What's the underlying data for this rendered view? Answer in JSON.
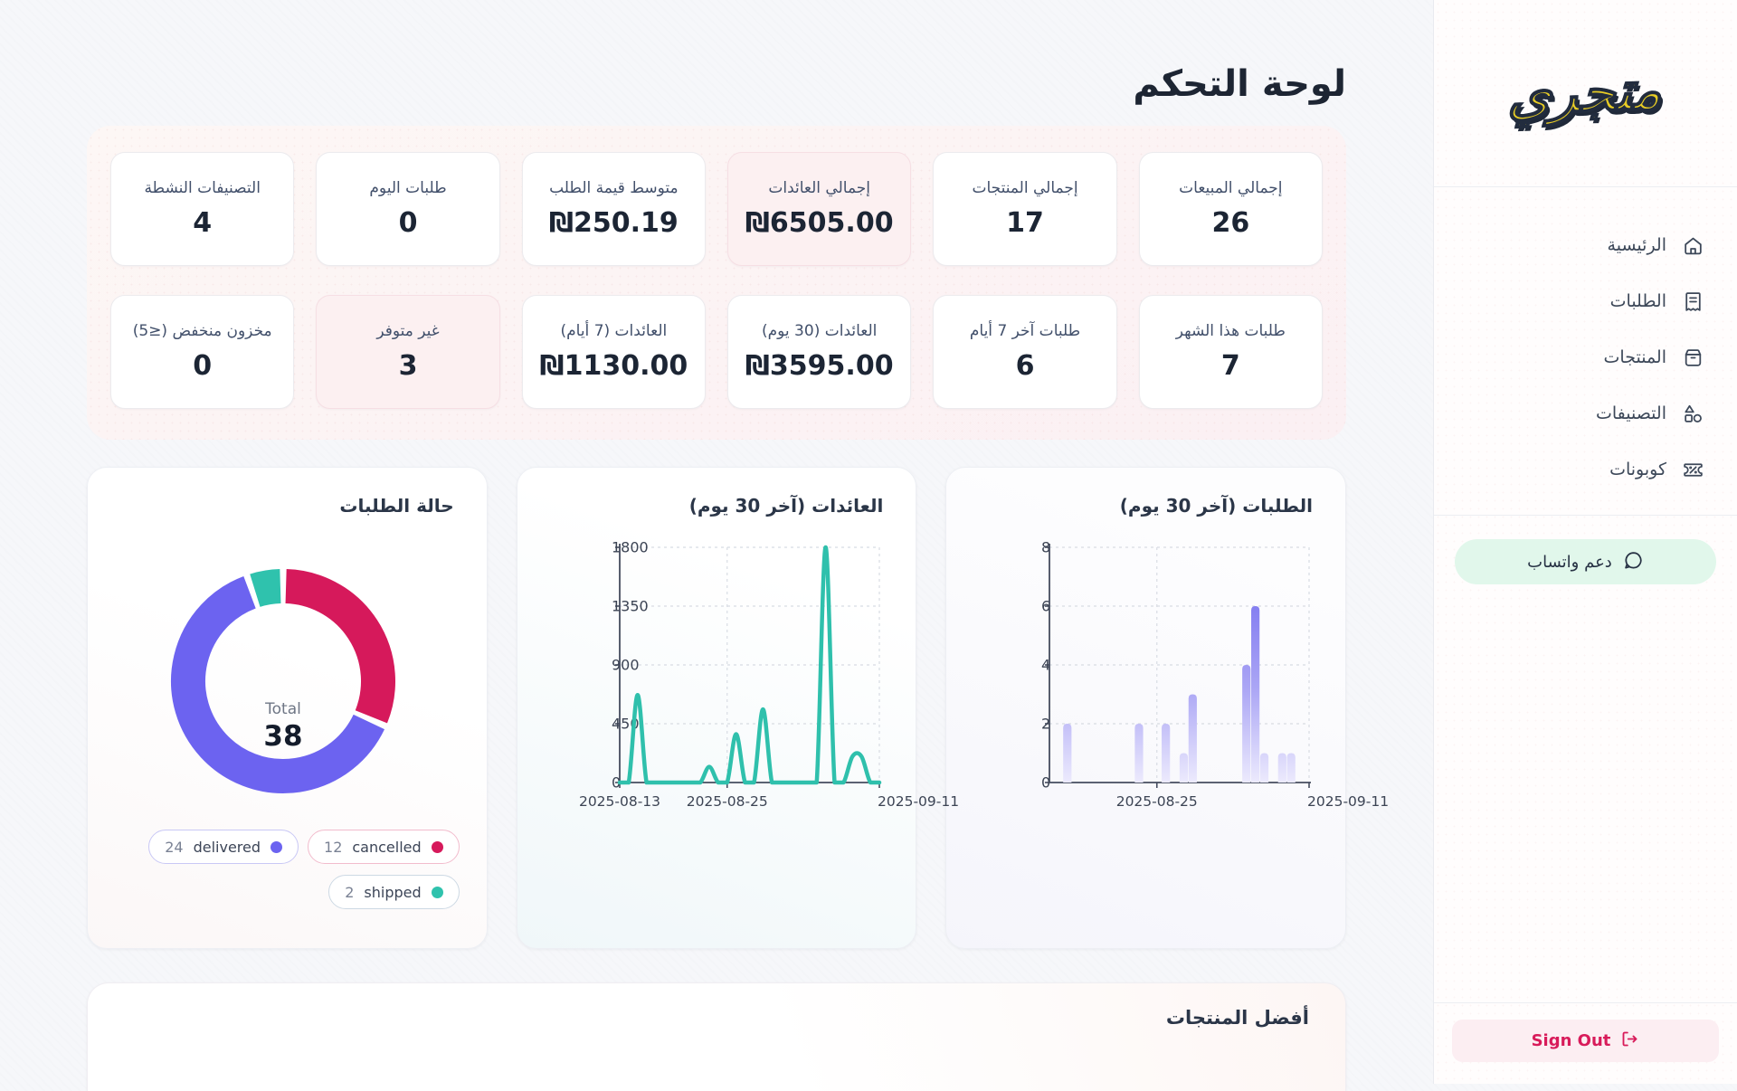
{
  "page": {
    "title": "لوحة التحكم"
  },
  "sidebar": {
    "logo": "متجري",
    "nav": [
      {
        "label": "الرئيسية",
        "icon": "home"
      },
      {
        "label": "الطلبات",
        "icon": "receipt"
      },
      {
        "label": "المنتجات",
        "icon": "box"
      },
      {
        "label": "التصنيفات",
        "icon": "shapes"
      },
      {
        "label": "كوبونات",
        "icon": "ticket"
      }
    ],
    "whatsapp_label": "دعم واتساب",
    "signout_label": "Sign Out"
  },
  "stats": {
    "cards": [
      {
        "label": "إجمالي المبيعات",
        "value": "26",
        "highlight": false
      },
      {
        "label": "إجمالي المنتجات",
        "value": "17",
        "highlight": false
      },
      {
        "label": "إجمالي العائدات",
        "value": "₪6505.00",
        "highlight": true
      },
      {
        "label": "متوسط قيمة الطلب",
        "value": "₪250.19",
        "highlight": false
      },
      {
        "label": "طلبات اليوم",
        "value": "0",
        "highlight": false
      },
      {
        "label": "التصنيفات النشطة",
        "value": "4",
        "highlight": false
      },
      {
        "label": "طلبات هذا الشهر",
        "value": "7",
        "highlight": false
      },
      {
        "label": "طلبات آخر 7 أيام",
        "value": "6",
        "highlight": false
      },
      {
        "label": "العائدات (30 يوم)",
        "value": "₪3595.00",
        "highlight": false
      },
      {
        "label": "العائدات (7 أيام)",
        "value": "₪1130.00",
        "highlight": false
      },
      {
        "label": "غير متوفر",
        "value": "3",
        "highlight": true
      },
      {
        "label": "مخزون منخفض (≤5)",
        "value": "0",
        "highlight": false
      }
    ]
  },
  "chart_data": [
    {
      "type": "pie",
      "subtype": "donut",
      "title": "حالة الطلبات",
      "center_label": "Total",
      "center_value": "38",
      "total": 38,
      "slices": [
        {
          "name": "cancelled",
          "value": 12,
          "color": "#d6195b",
          "pill_border": "#f2bccd"
        },
        {
          "name": "delivered",
          "value": 24,
          "color": "#6c63f0",
          "pill_border": "#c9c8f5"
        },
        {
          "name": "shipped",
          "value": 2,
          "color": "#2fc2ad",
          "pill_border": "#cdd9e4"
        }
      ],
      "legend_position": "bottom"
    },
    {
      "type": "line",
      "title": "العائدات (آخر 30 يوم)",
      "color": "#2fc0ac",
      "ylim": [
        0,
        1800
      ],
      "yticks": [
        0,
        450,
        900,
        1350,
        1800
      ],
      "xticks": [
        {
          "label": "2025-08-13",
          "day": 0
        },
        {
          "label": "2025-08-25",
          "day": 12
        },
        {
          "label": "2025-09-11",
          "day": 29
        }
      ],
      "x": [
        "2025-08-13",
        "2025-08-14",
        "2025-08-15",
        "2025-08-16",
        "2025-08-17",
        "2025-08-18",
        "2025-08-19",
        "2025-08-20",
        "2025-08-21",
        "2025-08-22",
        "2025-08-23",
        "2025-08-24",
        "2025-08-25",
        "2025-08-26",
        "2025-08-27",
        "2025-08-28",
        "2025-08-29",
        "2025-08-30",
        "2025-08-31",
        "2025-09-01",
        "2025-09-02",
        "2025-09-03",
        "2025-09-04",
        "2025-09-05",
        "2025-09-06",
        "2025-09-07",
        "2025-09-08",
        "2025-09-09",
        "2025-09-10",
        "2025-09-11"
      ],
      "values": [
        0,
        0,
        670,
        0,
        0,
        0,
        0,
        0,
        0,
        0,
        120,
        0,
        0,
        370,
        0,
        0,
        560,
        0,
        0,
        0,
        0,
        0,
        0,
        1800,
        0,
        0,
        200,
        200,
        0,
        0
      ],
      "grid": "dashed"
    },
    {
      "type": "bar",
      "title": "الطلبات (آخر 30 يوم)",
      "color": "#6a63ee",
      "color_fade": "#eceafd",
      "ylim": [
        0,
        8
      ],
      "yticks": [
        0,
        2,
        4,
        6,
        8
      ],
      "xticks": [
        {
          "label": "2025-08-25",
          "day": 12
        },
        {
          "label": "2025-09-11",
          "day": 29
        }
      ],
      "x": [
        "2025-08-13",
        "2025-08-14",
        "2025-08-15",
        "2025-08-16",
        "2025-08-17",
        "2025-08-18",
        "2025-08-19",
        "2025-08-20",
        "2025-08-21",
        "2025-08-22",
        "2025-08-23",
        "2025-08-24",
        "2025-08-25",
        "2025-08-26",
        "2025-08-27",
        "2025-08-28",
        "2025-08-29",
        "2025-08-30",
        "2025-08-31",
        "2025-09-01",
        "2025-09-02",
        "2025-09-03",
        "2025-09-04",
        "2025-09-05",
        "2025-09-06",
        "2025-09-07",
        "2025-09-08",
        "2025-09-09",
        "2025-09-10",
        "2025-09-11"
      ],
      "values": [
        0,
        0,
        2,
        0,
        0,
        0,
        0,
        0,
        0,
        0,
        2,
        0,
        0,
        2,
        0,
        1,
        3,
        0,
        0,
        0,
        0,
        0,
        4,
        6,
        1,
        0,
        1,
        1,
        0,
        0
      ],
      "grid": "dashed"
    }
  ],
  "bottom": {
    "title": "أفضل المنتجات"
  },
  "colors": {
    "accent_crimson": "#d6195b",
    "accent_indigo": "#6c63f0",
    "accent_teal": "#2fc2ad",
    "title_text": "#1d2533",
    "axis_text": "#3c4454"
  }
}
